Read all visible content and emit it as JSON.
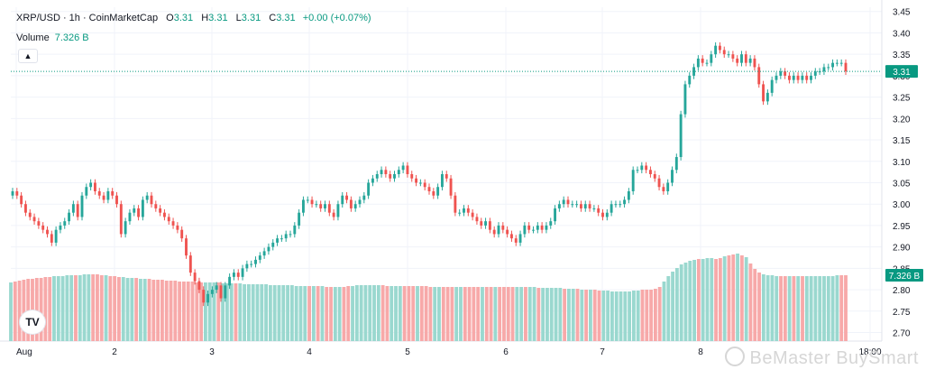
{
  "header": {
    "symbol": "XRP/USD · 1h · CoinMarketCap",
    "o_label": "O",
    "o_value": "3.31",
    "h_label": "H",
    "h_value": "3.31",
    "l_label": "L",
    "l_value": "3.31",
    "c_label": "C",
    "c_value": "3.31",
    "change": "+0.00 (+0.07%)"
  },
  "volume": {
    "label": "Volume",
    "value": "7.326 B"
  },
  "collapse_icon": "chevron-up-icon",
  "watermark": "BeMaster BuySmart",
  "logo_text": "TV",
  "colors": {
    "up": "#26a69a",
    "down": "#ef5350",
    "vol_up": "#9ad8cf",
    "vol_down": "#f7a9a9",
    "price_tag": "#089981"
  },
  "chart_data": {
    "type": "candlestick",
    "title": "XRP/USD · 1h · CoinMarketCap",
    "y_ticks": [
      "3.45",
      "3.40",
      "3.35",
      "3.30",
      "3.25",
      "3.20",
      "3.15",
      "3.10",
      "3.05",
      "3.00",
      "2.95",
      "2.90",
      "2.85",
      "2.80",
      "2.75",
      "2.70"
    ],
    "ylim": [
      2.68,
      3.46
    ],
    "x_ticks": [
      "Aug",
      "2",
      "3",
      "4",
      "5",
      "6",
      "7",
      "8",
      "18:00"
    ],
    "last_price": "3.31",
    "last_volume": "7.326 B",
    "close_series": [
      3.03,
      3.02,
      3.0,
      2.98,
      2.97,
      2.96,
      2.95,
      2.94,
      2.93,
      2.91,
      2.94,
      2.95,
      2.96,
      2.98,
      3.0,
      2.97,
      3.02,
      3.04,
      3.05,
      3.03,
      3.02,
      3.01,
      3.03,
      3.02,
      3.0,
      2.93,
      2.96,
      2.98,
      2.99,
      2.97,
      3.01,
      3.02,
      3.0,
      2.99,
      2.98,
      2.97,
      2.96,
      2.95,
      2.94,
      2.92,
      2.88,
      2.84,
      2.82,
      2.8,
      2.77,
      2.79,
      2.8,
      2.81,
      2.78,
      2.81,
      2.83,
      2.84,
      2.83,
      2.85,
      2.86,
      2.86,
      2.87,
      2.88,
      2.89,
      2.9,
      2.91,
      2.92,
      2.92,
      2.93,
      2.93,
      2.95,
      2.98,
      3.01,
      3.01,
      3.0,
      3.0,
      2.99,
      3.0,
      2.98,
      2.97,
      3.0,
      3.02,
      3.01,
      2.99,
      3.0,
      3.01,
      3.02,
      3.05,
      3.06,
      3.07,
      3.08,
      3.07,
      3.06,
      3.07,
      3.08,
      3.09,
      3.07,
      3.06,
      3.05,
      3.05,
      3.04,
      3.03,
      3.02,
      3.04,
      3.07,
      3.06,
      3.02,
      2.98,
      2.98,
      2.99,
      2.98,
      2.97,
      2.96,
      2.95,
      2.96,
      2.94,
      2.93,
      2.95,
      2.94,
      2.93,
      2.92,
      2.91,
      2.93,
      2.95,
      2.94,
      2.94,
      2.95,
      2.94,
      2.95,
      2.96,
      2.99,
      3.0,
      3.01,
      3.0,
      3.0,
      3.0,
      2.99,
      3.0,
      2.99,
      2.99,
      2.98,
      2.97,
      2.98,
      3.0,
      3.0,
      3.0,
      3.01,
      3.03,
      3.08,
      3.08,
      3.09,
      3.08,
      3.07,
      3.06,
      3.04,
      3.03,
      3.05,
      3.08,
      3.11,
      3.21,
      3.28,
      3.3,
      3.32,
      3.34,
      3.33,
      3.33,
      3.35,
      3.37,
      3.36,
      3.35,
      3.35,
      3.34,
      3.33,
      3.35,
      3.33,
      3.34,
      3.32,
      3.28,
      3.24,
      3.26,
      3.29,
      3.3,
      3.31,
      3.3,
      3.29,
      3.3,
      3.29,
      3.3,
      3.29,
      3.3,
      3.31,
      3.31,
      3.32,
      3.32,
      3.33,
      3.33,
      3.33,
      3.31
    ],
    "volume_series_billion": [
      6.5,
      6.6,
      6.7,
      6.8,
      6.9,
      6.9,
      7.0,
      7.0,
      7.1,
      7.1,
      7.2,
      7.2,
      7.2,
      7.3,
      7.3,
      7.3,
      7.3,
      7.4,
      7.4,
      7.4,
      7.4,
      7.3,
      7.3,
      7.2,
      7.2,
      7.1,
      7.1,
      7.0,
      7.0,
      7.0,
      6.9,
      6.9,
      6.9,
      6.8,
      6.8,
      6.8,
      6.7,
      6.7,
      6.7,
      6.6,
      6.6,
      6.6,
      6.6,
      6.5,
      6.5,
      6.5,
      6.5,
      6.5,
      6.5,
      6.4,
      6.4,
      6.4,
      6.4,
      6.4,
      6.3,
      6.3,
      6.3,
      6.3,
      6.3,
      6.3,
      6.2,
      6.2,
      6.2,
      6.2,
      6.2,
      6.2,
      6.1,
      6.1,
      6.1,
      6.1,
      6.1,
      6.1,
      6.1,
      6.0,
      6.0,
      6.0,
      6.0,
      6.0,
      6.1,
      6.1,
      6.2,
      6.2,
      6.2,
      6.2,
      6.2,
      6.2,
      6.2,
      6.1,
      6.1,
      6.1,
      6.1,
      6.1,
      6.1,
      6.1,
      6.1,
      6.1,
      6.1,
      6.0,
      6.0,
      6.0,
      6.0,
      6.0,
      6.0,
      6.0,
      6.0,
      6.0,
      6.0,
      6.0,
      6.0,
      6.0,
      6.0,
      6.0,
      6.0,
      6.0,
      6.0,
      6.0,
      6.0,
      6.0,
      6.0,
      6.0,
      6.0,
      6.0,
      5.9,
      5.9,
      5.9,
      5.9,
      5.9,
      5.9,
      5.8,
      5.8,
      5.8,
      5.8,
      5.7,
      5.7,
      5.7,
      5.7,
      5.6,
      5.6,
      5.6,
      5.5,
      5.5,
      5.5,
      5.5,
      5.5,
      5.6,
      5.6,
      5.7,
      5.7,
      5.7,
      5.8,
      6.0,
      6.6,
      7.2,
      7.7,
      8.1,
      8.5,
      8.7,
      8.9,
      9.0,
      9.1,
      9.1,
      9.2,
      9.2,
      9.1,
      9.2,
      9.4,
      9.5,
      9.6,
      9.7,
      9.5,
      9.3,
      8.6,
      8.0,
      7.6,
      7.4,
      7.3,
      7.3,
      7.2,
      7.2,
      7.2,
      7.2,
      7.2,
      7.2,
      7.2,
      7.2,
      7.2,
      7.2,
      7.2,
      7.2,
      7.2,
      7.2,
      7.3,
      7.3,
      7.3
    ],
    "volume_axis_max_billion": 12.8,
    "grid": true,
    "legend": "top-left"
  }
}
